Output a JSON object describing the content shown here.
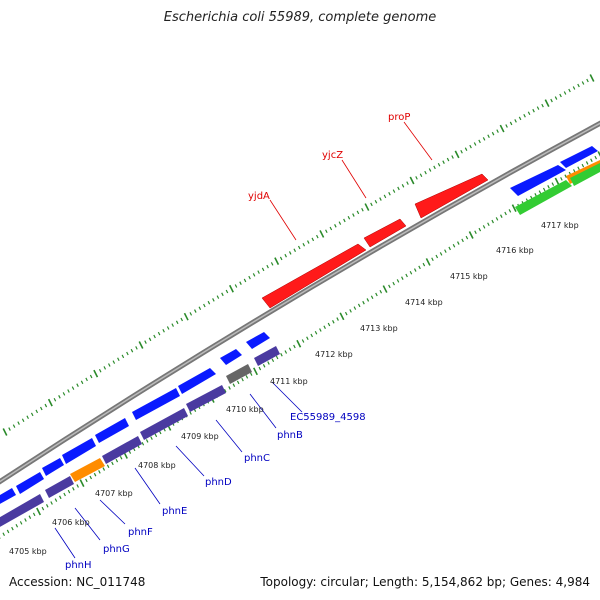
{
  "title": "Escherichia coli 55989, complete genome",
  "footer": {
    "accession": "Accession: NC_011748",
    "summary": "Topology: circular; Length: 5,154,862 bp; Genes: 4,984"
  },
  "colors": {
    "backbone": "#888888",
    "tick": "#2a8a2a",
    "forward_gene": "#0a1aff",
    "reverse_gene": "#4a3aa0",
    "highlight_gene": "#ff1a1a",
    "orange_gene": "#ff8c00",
    "green_gene": "#33cc33",
    "grey_gene": "#666666"
  },
  "kbp_labels": [
    "4705 kbp",
    "4706 kbp",
    "4707 kbp",
    "4708 kbp",
    "4709 kbp",
    "4710 kbp",
    "4711 kbp",
    "4712 kbp",
    "4713 kbp",
    "4714 kbp",
    "4715 kbp",
    "4716 kbp",
    "4717 kbp"
  ],
  "top_gene_labels": [
    "yjdA",
    "yjcZ",
    "proP"
  ],
  "bottom_gene_labels": [
    "phnH",
    "phnG",
    "phnF",
    "phnE",
    "phnD",
    "phnC",
    "phnB",
    "EC55989_4598"
  ]
}
